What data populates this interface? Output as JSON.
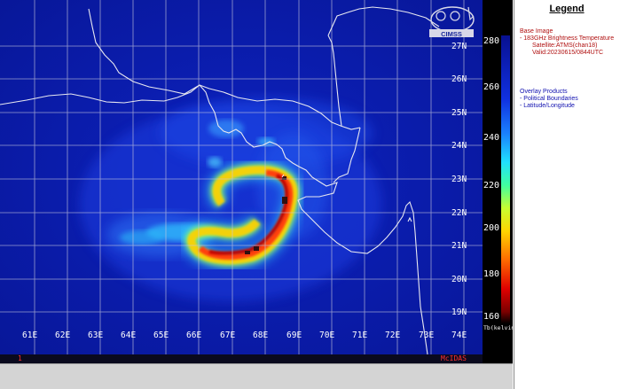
{
  "map": {
    "lat_labels": [
      "27N",
      "26N",
      "25N",
      "24N",
      "23N",
      "22N",
      "21N",
      "20N",
      "19N"
    ],
    "lon_labels": [
      "61E",
      "62E",
      "63E",
      "64E",
      "65E",
      "66E",
      "67E",
      "68E",
      "69E",
      "70E",
      "71E",
      "72E",
      "73E",
      "74E"
    ],
    "logo_text": "CIMSS"
  },
  "colorbar": {
    "ticks": [
      "280",
      "260",
      "240",
      "220",
      "200",
      "180",
      "160"
    ],
    "unit_label": "Tb(kelvin)"
  },
  "legend": {
    "title": "Legend",
    "base_image_heading": "Base Image",
    "base_image_lines": [
      "-  183GHz Brightness Temperature",
      "Satellite:ATMS(chan18)",
      "Valid:20230615/0844UTC"
    ],
    "overlay_heading": "Overlay Products",
    "overlay_lines": [
      "-  Political Boundaries",
      "-  Latitude/Longitude"
    ]
  },
  "status_strip": {
    "left_marker": "1",
    "right_label": "McIDAS"
  },
  "colors": {
    "background": "#0a1ab0",
    "grid": "#c8c8dc",
    "coast": "#e8e8f0",
    "accent_red": "#b01010",
    "accent_blue": "#1010b0"
  }
}
